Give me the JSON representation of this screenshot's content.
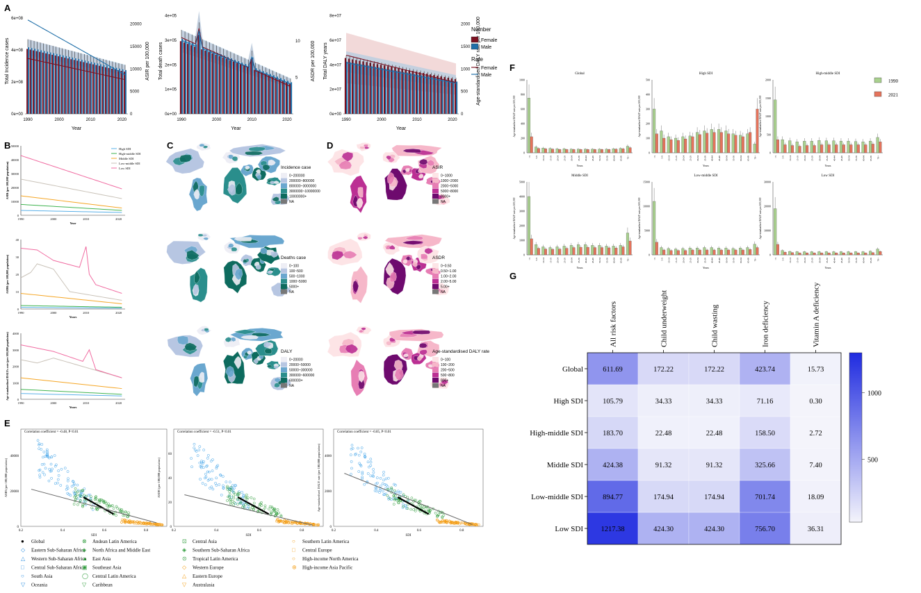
{
  "panel_letters": {
    "A": "A",
    "B": "B",
    "C": "C",
    "D": "D",
    "E": "E",
    "F": "F",
    "G": "G"
  },
  "colors": {
    "female": "#7b1020",
    "male": "#1f6fa8",
    "female_band": "#e8b9b9",
    "male_band": "#9fc8e4",
    "heat_high": "#1f2be0",
    "heat_low": "#f4f4fb",
    "map_blue": [
      "#eeeef5",
      "#b7c6e2",
      "#6aa7cf",
      "#2a8e8c",
      "#0d6b5e",
      "#777777"
    ],
    "map_pink": [
      "#fde4e6",
      "#f6b7c9",
      "#e77eb4",
      "#bb2f93",
      "#6e0a6e",
      "#777777"
    ],
    "sdi": {
      "high": "#5ab0e8",
      "high_middle": "#3fb34f",
      "middle": "#f5a523",
      "low_middle": "#c9c2b8",
      "low": "#f06aa0"
    },
    "bar1990": "#a9d18e",
    "bar2021": "#e5735c"
  },
  "chart_data": [
    {
      "id": "A1",
      "type": "bar",
      "ylabel": "Total Incidence cases",
      "ylabel2": "ASIR per 100,000",
      "xlabel": "Year",
      "y_ticks": [
        "0e+00",
        "2e+08",
        "4e+08",
        "6e+08"
      ],
      "y2_ticks": [
        "0",
        "5000",
        "10000",
        "15000",
        "20000"
      ],
      "x_ticks": [
        "1990",
        "2000",
        "2010",
        "2020"
      ],
      "ylim": [
        0,
        650000000
      ],
      "years": [
        1990,
        2021
      ],
      "series": [
        {
          "name": "Female",
          "kind": "bar",
          "start": 400000000,
          "end": 260000000
        },
        {
          "name": "Male",
          "kind": "bar",
          "start": 410000000,
          "end": 270000000
        },
        {
          "name": "Female rate",
          "kind": "line",
          "start": 10500,
          "end": 6500
        },
        {
          "name": "Male rate",
          "kind": "line",
          "start": 17800,
          "end": 7400
        }
      ]
    },
    {
      "id": "A2",
      "type": "bar",
      "ylabel": "Total death cases",
      "ylabel2": "ASDR per 100,000",
      "xlabel": "Year",
      "y_ticks": [
        "0e+00",
        "1e+05",
        "2e+05",
        "3e+05",
        "4e+05"
      ],
      "y2_ticks": [
        "5",
        "10"
      ],
      "x_ticks": [
        "1990",
        "2000",
        "2010",
        "2020"
      ],
      "ylim": [
        0,
        450000
      ],
      "spike_years": [
        1995,
        2010
      ],
      "series": [
        {
          "name": "Female",
          "kind": "bar",
          "start": 310000,
          "end": 130000
        },
        {
          "name": "Male",
          "kind": "bar",
          "start": 320000,
          "end": 135000
        }
      ]
    },
    {
      "id": "A3",
      "type": "bar",
      "ylabel": "Total DALY years",
      "ylabel2": "Age-standardised DALY rate per 100,000",
      "xlabel": "Year",
      "y_ticks": [
        "0e+00",
        "2e+07",
        "4e+07",
        "6e+07",
        "8e+07"
      ],
      "y2_ticks": [
        "0",
        "500",
        "1000",
        "1500",
        "2000"
      ],
      "x_ticks": [
        "1990",
        "2000",
        "2010",
        "2020"
      ],
      "ylim": [
        0,
        85000000
      ],
      "series": [
        {
          "name": "Female",
          "kind": "bar",
          "start": 45000000,
          "end": 28000000
        },
        {
          "name": "Male",
          "kind": "bar",
          "start": 42000000,
          "end": 26000000
        }
      ]
    },
    {
      "id": "B1",
      "type": "line",
      "ylabel": "ASIR (per 100,000 population)",
      "xlabel": "Year",
      "y_ticks": [
        "0",
        "10000",
        "20000",
        "30000",
        "40000",
        "50000"
      ],
      "x_ticks": [
        "1990",
        "2000",
        "2010",
        "2020"
      ],
      "ylim": [
        0,
        50000
      ],
      "series": [
        {
          "name": "High SDI",
          "x": [
            1990,
            2021
          ],
          "y": [
            3500,
            2000
          ]
        },
        {
          "name": "High-middle SDI",
          "x": [
            1990,
            2021
          ],
          "y": [
            7800,
            3500
          ]
        },
        {
          "name": "Middle SDI",
          "x": [
            1990,
            2021
          ],
          "y": [
            14000,
            5200
          ]
        },
        {
          "name": "Low-middle SDI",
          "x": [
            1990,
            2021
          ],
          "y": [
            26000,
            12000
          ]
        },
        {
          "name": "Low SDI",
          "x": [
            1990,
            2021
          ],
          "y": [
            43000,
            19000
          ]
        }
      ]
    },
    {
      "id": "B2",
      "type": "line",
      "ylabel": "ASDR (per 100,000 population)",
      "xlabel": "Years",
      "y_ticks": [
        "0",
        "10",
        "20",
        "30",
        "40"
      ],
      "x_ticks": [
        "1990",
        "2000",
        "2010",
        "2020"
      ],
      "ylim": [
        0,
        40
      ],
      "series": [
        {
          "name": "High SDI",
          "x": [
            1990,
            2021
          ],
          "y": [
            1.0,
            0.5
          ]
        },
        {
          "name": "High-middle SDI",
          "x": [
            1990,
            2021
          ],
          "y": [
            2.0,
            1.0
          ]
        },
        {
          "name": "Middle SDI",
          "x": [
            1990,
            2021
          ],
          "y": [
            9.0,
            3.0
          ]
        },
        {
          "name": "Low-middle SDI",
          "x": [
            1990,
            1993,
            1995,
            2000,
            2005,
            2021
          ],
          "y": [
            18,
            21,
            26,
            23,
            10,
            5
          ]
        },
        {
          "name": "Low SDI",
          "x": [
            1990,
            1995,
            2000,
            2008,
            2010,
            2011,
            2013,
            2021
          ],
          "y": [
            35,
            34,
            28,
            24,
            36,
            20,
            14,
            9
          ]
        }
      ]
    },
    {
      "id": "B3",
      "type": "line",
      "ylabel": "Age-standardised DALYs rate (per 100,000 population)",
      "xlabel": "Years",
      "y_ticks": [
        "0",
        "1000",
        "2000",
        "3000",
        "4000"
      ],
      "x_ticks": [
        "1990",
        "2000",
        "2010",
        "2020"
      ],
      "ylim": [
        0,
        4000
      ],
      "series": [
        {
          "name": "High SDI",
          "x": [
            1990,
            2021
          ],
          "y": [
            350,
            200
          ]
        },
        {
          "name": "High-middle SDI",
          "x": [
            1990,
            2021
          ],
          "y": [
            600,
            300
          ]
        },
        {
          "name": "Middle SDI",
          "x": [
            1990,
            2021
          ],
          "y": [
            1300,
            650
          ]
        },
        {
          "name": "Low-middle SDI",
          "x": [
            1990,
            1995,
            2000,
            2021
          ],
          "y": [
            2400,
            2200,
            2500,
            1300
          ]
        },
        {
          "name": "Low SDI",
          "x": [
            1990,
            2000,
            2009,
            2011,
            2013,
            2021
          ],
          "y": [
            3300,
            2900,
            2300,
            3000,
            1800,
            1300
          ]
        }
      ]
    },
    {
      "id": "E1",
      "type": "scatter",
      "xlabel": "SDI",
      "ylabel": "ASIR (per 100,000 population)",
      "annotation": "Correlation coefficient = -0.48, P<0.01",
      "x_ticks": [
        "0.2",
        "0.4",
        "0.6",
        "0.8"
      ],
      "y_ticks": [
        "0",
        "20000",
        "40000"
      ],
      "xlim": [
        0.2,
        0.9
      ],
      "ylim": [
        0,
        55000
      ],
      "trend": {
        "x": [
          0.25,
          0.85
        ],
        "y": [
          21000,
          2000
        ]
      }
    },
    {
      "id": "E2",
      "type": "scatter",
      "xlabel": "SDI",
      "ylabel": "ASDR (per 100,000 population)",
      "annotation": "Correlation coefficient = -0.51, P<0.01",
      "x_ticks": [
        "0.2",
        "0.4",
        "0.6",
        "0.8"
      ],
      "y_ticks": [
        "0",
        "20",
        "40",
        "60"
      ],
      "xlim": [
        0.2,
        0.9
      ],
      "ylim": [
        0,
        80
      ],
      "trend": {
        "x": [
          0.25,
          0.85
        ],
        "y": [
          26,
          1
        ]
      }
    },
    {
      "id": "E3",
      "type": "scatter",
      "xlabel": "SDI",
      "ylabel": "Age-standardised DALY rate (per 100,000 population)",
      "annotation": "Correlation coefficient = -0.85, P<0.01",
      "x_ticks": [
        "0.2",
        "0.4",
        "0.6",
        "0.8"
      ],
      "y_ticks": [
        "0",
        "2000",
        "4000"
      ],
      "xlim": [
        0.2,
        0.9
      ],
      "ylim": [
        0,
        5500
      ],
      "trend": {
        "x": [
          0.25,
          0.85
        ],
        "y": [
          3000,
          100
        ]
      }
    },
    {
      "id": "F",
      "type": "bar",
      "ylabel": "Age-standardised DALY rate per 100,000",
      "xlabel": "Years",
      "age_groups": [
        "<5",
        "5-9",
        "10-14",
        "15-19",
        "20-24",
        "25-29",
        "30-34",
        "35-39",
        "40-44",
        "45-49",
        "50-54",
        "55-59",
        "60-64",
        "65-69",
        "70+"
      ],
      "legend": [
        "1990",
        "2021"
      ],
      "subplots": [
        {
          "title": "Global",
          "ymax": 1000,
          "y_ticks": [
            "0",
            "200",
            "400",
            "600",
            "800",
            "1000"
          ],
          "v1990": [
            750,
            80,
            65,
            60,
            55,
            55,
            50,
            50,
            50,
            50,
            50,
            50,
            55,
            60,
            90
          ],
          "v2021": [
            220,
            60,
            55,
            50,
            45,
            45,
            45,
            45,
            45,
            45,
            45,
            45,
            50,
            55,
            70
          ]
        },
        {
          "title": "High SDI",
          "ymax": 500,
          "y_ticks": [
            "0",
            "100",
            "200",
            "300",
            "400",
            "500"
          ],
          "v1990": [
            300,
            150,
            110,
            100,
            110,
            115,
            140,
            150,
            160,
            160,
            150,
            130,
            120,
            130,
            60
          ],
          "v2021": [
            130,
            100,
            90,
            85,
            95,
            110,
            125,
            135,
            140,
            140,
            130,
            120,
            110,
            140,
            300
          ]
        },
        {
          "title": "High-middle SDI",
          "ymax": 2000,
          "y_ticks": [
            "0",
            "500",
            "1000",
            "1500",
            "2000"
          ],
          "v1990": [
            1450,
            360,
            330,
            300,
            320,
            320,
            340,
            330,
            330,
            320,
            320,
            310,
            300,
            320,
            420
          ],
          "v2021": [
            360,
            220,
            200,
            180,
            200,
            200,
            220,
            220,
            220,
            220,
            220,
            220,
            220,
            240,
            300
          ]
        },
        {
          "title": "Middle SDI",
          "ymax": 5000,
          "y_ticks": [
            "0",
            "1000",
            "2000",
            "3000",
            "4000",
            "5000"
          ],
          "v1990": [
            4000,
            700,
            550,
            500,
            550,
            600,
            650,
            700,
            700,
            650,
            650,
            600,
            600,
            650,
            1500
          ],
          "v2021": [
            1100,
            450,
            400,
            380,
            400,
            450,
            500,
            520,
            520,
            500,
            500,
            480,
            470,
            550,
            950
          ]
        },
        {
          "title": "Low-middle SDI",
          "ymax": 15000,
          "y_ticks": [
            "0",
            "5000",
            "10000",
            "15000"
          ],
          "v1990": [
            11000,
            1500,
            1300,
            1200,
            1300,
            1400,
            1400,
            1500,
            1500,
            1400,
            1400,
            1300,
            1400,
            1500,
            2200
          ],
          "v2021": [
            2600,
            1000,
            900,
            900,
            900,
            1000,
            1000,
            1000,
            1000,
            1000,
            1000,
            1000,
            1000,
            1100,
            1500
          ]
        },
        {
          "title": "Low SDI",
          "ymax": 30000,
          "y_ticks": [
            "0",
            "10000",
            "20000",
            "30000"
          ],
          "v1990": [
            19000,
            1800,
            1400,
            1300,
            1300,
            1300,
            1300,
            1300,
            1300,
            1300,
            1300,
            1300,
            1300,
            1500,
            2400
          ],
          "v2021": [
            4300,
            1100,
            900,
            800,
            800,
            800,
            800,
            800,
            800,
            800,
            800,
            800,
            800,
            900,
            1400
          ]
        }
      ]
    },
    {
      "id": "G",
      "type": "heatmap",
      "columns": [
        "All risk factors",
        "Child underweight",
        "Child wasting",
        "Iron deficiency",
        "Vitamin A deficiency"
      ],
      "rows": [
        "Global",
        "High SDI",
        "High-middle SDI",
        "Middle SDI",
        "Low-middle SDI",
        "Low SDI"
      ],
      "values": [
        [
          611.69,
          172.22,
          172.22,
          423.74,
          15.73
        ],
        [
          105.79,
          34.33,
          34.33,
          71.16,
          0.3
        ],
        [
          183.7,
          22.48,
          22.48,
          158.5,
          2.72
        ],
        [
          424.38,
          91.32,
          91.32,
          325.66,
          7.4
        ],
        [
          894.77,
          174.94,
          174.94,
          701.74,
          18.09
        ],
        [
          1217.38,
          424.3,
          424.3,
          756.7,
          36.31
        ]
      ],
      "colorbar_ticks": [
        "500",
        "1000"
      ],
      "vmax": 1300
    }
  ],
  "legend_A": {
    "title_number": "Number",
    "title_rate": "Rate",
    "number_items": [
      "Female",
      "Male"
    ],
    "rate_items": [
      "Female",
      "Male"
    ]
  },
  "legend_B": [
    "High SDI",
    "High-middle SDI",
    "Middle SDI",
    "Low-middle SDI",
    "Low SDI"
  ],
  "maps": {
    "C": [
      {
        "title": "Incidence case",
        "items": [
          "0~200000",
          "200000~800000",
          "800000~3000000",
          "3000000~10000000",
          "10000000+",
          "NA"
        ]
      },
      {
        "title": "Deaths case",
        "items": [
          "0~100",
          "100~500",
          "500~1000",
          "1000~5000",
          "5000+",
          "NA"
        ]
      },
      {
        "title": "DALY",
        "items": [
          "0~20000",
          "20000~50000",
          "50000~300000",
          "300000~600000",
          "600000+",
          "NA"
        ]
      }
    ],
    "D": [
      {
        "title": "ASIR",
        "items": [
          "0~1000",
          "1000~2000",
          "2000~5000",
          "5000~8000",
          "8000+",
          "NA"
        ]
      },
      {
        "title": "ASDR",
        "items": [
          "0~0.50",
          "0.50~1.00",
          "1.00~2.00",
          "2.00~5.00",
          "5.00+",
          "NA"
        ]
      },
      {
        "title": "Age-standardised DALY rate",
        "items": [
          "0~100",
          "100~200",
          "200~500",
          "500~800",
          "800+",
          "NA"
        ]
      }
    ]
  },
  "legend_E": [
    [
      "Global",
      "Eastern Sub-Saharan Africa",
      "Western Sub-Saharan Africa",
      "Central Sub-Saharan Africa",
      "South Asia",
      "Oceania"
    ],
    [
      "Andean Latin America",
      "North Africa and Middle East",
      "East Asia",
      "Southeast Asia",
      "Central Latin America",
      "Caribbean"
    ],
    [
      "Central Asia",
      "Southern Sub-Saharan Africa",
      "Tropical Latin America",
      "Western Europe",
      "Eastern Europe",
      "Australasia"
    ],
    [
      "Southern Latin America",
      "Central Europe",
      "High-income North America",
      "High-income Asia Pacific"
    ]
  ]
}
